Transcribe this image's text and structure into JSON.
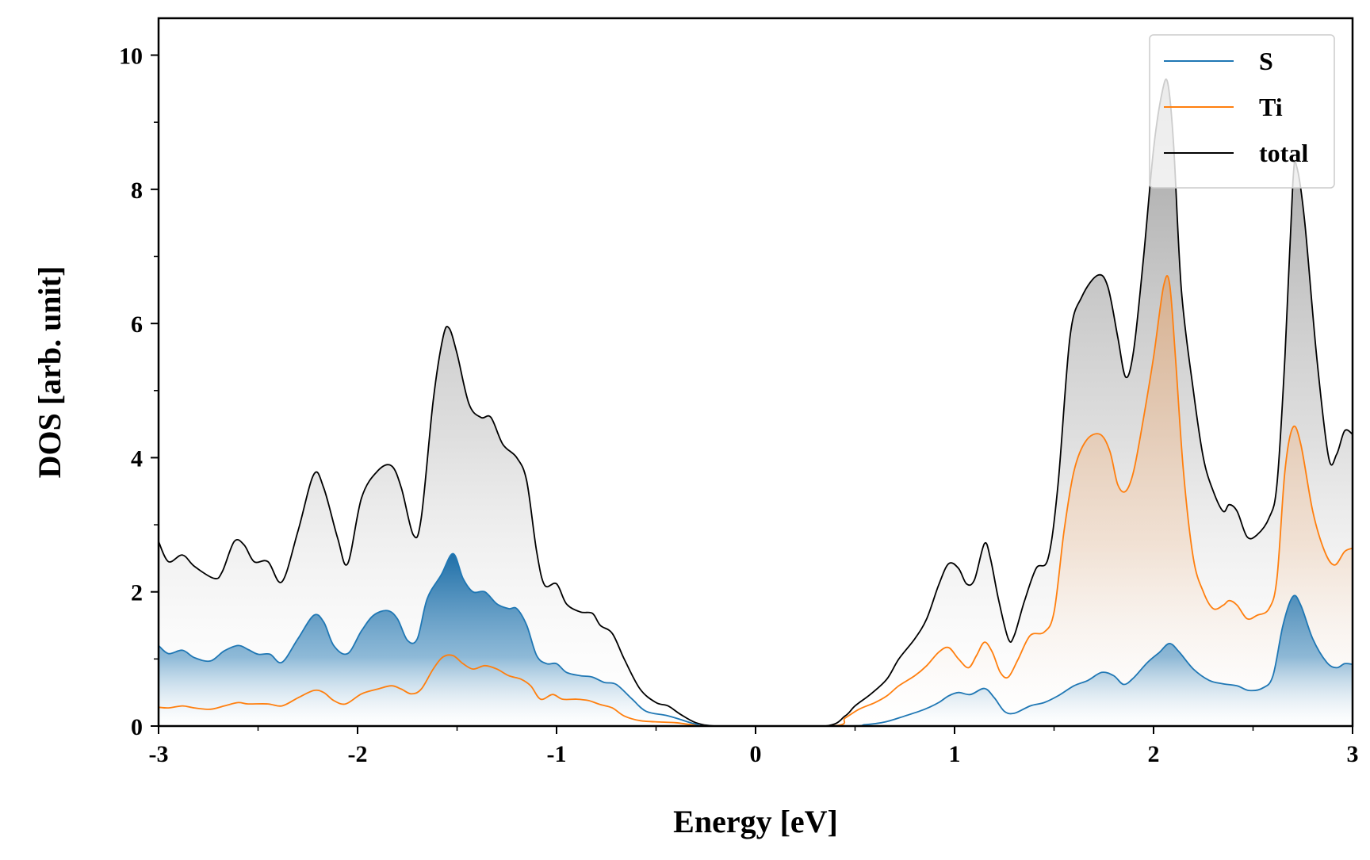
{
  "chart_data": {
    "type": "area",
    "title": "",
    "xlabel": "Energy [eV]",
    "ylabel": "DOS [arb. unit]",
    "xlim": [
      -3,
      3
    ],
    "ylim": [
      0,
      10.55
    ],
    "x_ticks": [
      {
        "v": -3,
        "label": "-3"
      },
      {
        "v": -2,
        "label": "-2"
      },
      {
        "v": -1,
        "label": "-1"
      },
      {
        "v": 0,
        "label": "0"
      },
      {
        "v": 1,
        "label": "1"
      },
      {
        "v": 2,
        "label": "2"
      },
      {
        "v": 3,
        "label": "3"
      }
    ],
    "x_minor_ticks": [
      -2.5,
      -1.5,
      -0.5,
      0.5,
      1.5,
      2.5
    ],
    "y_ticks": [
      {
        "v": 0,
        "label": "0"
      },
      {
        "v": 2,
        "label": "2"
      },
      {
        "v": 4,
        "label": "4"
      },
      {
        "v": 6,
        "label": "6"
      },
      {
        "v": 8,
        "label": "8"
      },
      {
        "v": 10,
        "label": "10"
      }
    ],
    "y_minor_ticks": [
      1,
      3,
      5,
      7,
      9
    ],
    "grid": false,
    "legend": {
      "position": "top-right",
      "entries": [
        "S",
        "Ti",
        "total"
      ]
    },
    "series": [
      {
        "name": "total",
        "color": "#000000",
        "fill": "gray",
        "points": [
          [
            -3.0,
            2.75
          ],
          [
            -2.95,
            2.45
          ],
          [
            -2.88,
            2.55
          ],
          [
            -2.82,
            2.38
          ],
          [
            -2.72,
            2.2
          ],
          [
            -2.68,
            2.3
          ],
          [
            -2.62,
            2.75
          ],
          [
            -2.57,
            2.7
          ],
          [
            -2.52,
            2.45
          ],
          [
            -2.45,
            2.45
          ],
          [
            -2.38,
            2.15
          ],
          [
            -2.3,
            2.9
          ],
          [
            -2.22,
            3.75
          ],
          [
            -2.17,
            3.55
          ],
          [
            -2.1,
            2.8
          ],
          [
            -2.05,
            2.42
          ],
          [
            -1.98,
            3.4
          ],
          [
            -1.9,
            3.8
          ],
          [
            -1.83,
            3.88
          ],
          [
            -1.78,
            3.55
          ],
          [
            -1.72,
            2.85
          ],
          [
            -1.68,
            3.1
          ],
          [
            -1.62,
            4.85
          ],
          [
            -1.57,
            5.8
          ],
          [
            -1.54,
            5.93
          ],
          [
            -1.5,
            5.55
          ],
          [
            -1.44,
            4.8
          ],
          [
            -1.38,
            4.6
          ],
          [
            -1.33,
            4.6
          ],
          [
            -1.27,
            4.2
          ],
          [
            -1.2,
            4.0
          ],
          [
            -1.15,
            3.65
          ],
          [
            -1.1,
            2.6
          ],
          [
            -1.06,
            2.1
          ],
          [
            -1.0,
            2.12
          ],
          [
            -0.95,
            1.82
          ],
          [
            -0.88,
            1.7
          ],
          [
            -0.82,
            1.68
          ],
          [
            -0.78,
            1.5
          ],
          [
            -0.72,
            1.38
          ],
          [
            -0.66,
            1.0
          ],
          [
            -0.58,
            0.55
          ],
          [
            -0.5,
            0.35
          ],
          [
            -0.44,
            0.3
          ],
          [
            -0.38,
            0.18
          ],
          [
            -0.3,
            0.05
          ],
          [
            -0.2,
            0.0
          ],
          [
            0.0,
            0.0
          ],
          [
            0.35,
            0.0
          ],
          [
            0.45,
            0.15
          ],
          [
            0.5,
            0.3
          ],
          [
            0.58,
            0.48
          ],
          [
            0.66,
            0.7
          ],
          [
            0.72,
            1.0
          ],
          [
            0.8,
            1.3
          ],
          [
            0.86,
            1.6
          ],
          [
            0.92,
            2.1
          ],
          [
            0.97,
            2.42
          ],
          [
            1.02,
            2.35
          ],
          [
            1.06,
            2.12
          ],
          [
            1.1,
            2.18
          ],
          [
            1.15,
            2.72
          ],
          [
            1.18,
            2.5
          ],
          [
            1.22,
            1.9
          ],
          [
            1.27,
            1.3
          ],
          [
            1.3,
            1.35
          ],
          [
            1.35,
            1.85
          ],
          [
            1.41,
            2.35
          ],
          [
            1.47,
            2.5
          ],
          [
            1.52,
            3.6
          ],
          [
            1.58,
            5.8
          ],
          [
            1.64,
            6.4
          ],
          [
            1.72,
            6.72
          ],
          [
            1.77,
            6.55
          ],
          [
            1.82,
            5.8
          ],
          [
            1.86,
            5.2
          ],
          [
            1.9,
            5.6
          ],
          [
            1.95,
            7.0
          ],
          [
            2.0,
            8.6
          ],
          [
            2.04,
            9.4
          ],
          [
            2.07,
            9.6
          ],
          [
            2.1,
            8.7
          ],
          [
            2.14,
            6.5
          ],
          [
            2.2,
            5.0
          ],
          [
            2.25,
            4.0
          ],
          [
            2.3,
            3.5
          ],
          [
            2.35,
            3.2
          ],
          [
            2.38,
            3.3
          ],
          [
            2.42,
            3.2
          ],
          [
            2.47,
            2.82
          ],
          [
            2.52,
            2.85
          ],
          [
            2.58,
            3.1
          ],
          [
            2.62,
            3.6
          ],
          [
            2.66,
            5.5
          ],
          [
            2.7,
            8.1
          ],
          [
            2.72,
            8.33
          ],
          [
            2.76,
            7.5
          ],
          [
            2.82,
            5.5
          ],
          [
            2.88,
            4.0
          ],
          [
            2.92,
            4.05
          ],
          [
            2.96,
            4.4
          ],
          [
            3.0,
            4.35
          ]
        ]
      },
      {
        "name": "S",
        "color": "#1f77b4",
        "fill": "blue",
        "points": [
          [
            -3.0,
            1.2
          ],
          [
            -2.95,
            1.08
          ],
          [
            -2.88,
            1.13
          ],
          [
            -2.82,
            1.02
          ],
          [
            -2.74,
            0.97
          ],
          [
            -2.67,
            1.12
          ],
          [
            -2.6,
            1.2
          ],
          [
            -2.55,
            1.14
          ],
          [
            -2.5,
            1.07
          ],
          [
            -2.44,
            1.07
          ],
          [
            -2.38,
            0.95
          ],
          [
            -2.3,
            1.3
          ],
          [
            -2.22,
            1.65
          ],
          [
            -2.17,
            1.55
          ],
          [
            -2.12,
            1.2
          ],
          [
            -2.05,
            1.08
          ],
          [
            -1.98,
            1.42
          ],
          [
            -1.92,
            1.65
          ],
          [
            -1.85,
            1.72
          ],
          [
            -1.8,
            1.6
          ],
          [
            -1.75,
            1.28
          ],
          [
            -1.7,
            1.3
          ],
          [
            -1.65,
            1.9
          ],
          [
            -1.58,
            2.25
          ],
          [
            -1.52,
            2.57
          ],
          [
            -1.47,
            2.2
          ],
          [
            -1.42,
            2.0
          ],
          [
            -1.36,
            2.0
          ],
          [
            -1.3,
            1.82
          ],
          [
            -1.24,
            1.75
          ],
          [
            -1.2,
            1.75
          ],
          [
            -1.15,
            1.5
          ],
          [
            -1.1,
            1.05
          ],
          [
            -1.05,
            0.93
          ],
          [
            -1.0,
            0.93
          ],
          [
            -0.95,
            0.8
          ],
          [
            -0.88,
            0.75
          ],
          [
            -0.82,
            0.73
          ],
          [
            -0.76,
            0.65
          ],
          [
            -0.7,
            0.62
          ],
          [
            -0.62,
            0.4
          ],
          [
            -0.55,
            0.22
          ],
          [
            -0.45,
            0.16
          ],
          [
            -0.38,
            0.1
          ],
          [
            -0.3,
            0.03
          ],
          [
            -0.2,
            0.0
          ],
          [
            0.45,
            0.0
          ],
          [
            0.55,
            0.02
          ],
          [
            0.65,
            0.06
          ],
          [
            0.75,
            0.15
          ],
          [
            0.85,
            0.25
          ],
          [
            0.92,
            0.35
          ],
          [
            0.97,
            0.45
          ],
          [
            1.02,
            0.5
          ],
          [
            1.08,
            0.47
          ],
          [
            1.15,
            0.56
          ],
          [
            1.2,
            0.42
          ],
          [
            1.25,
            0.22
          ],
          [
            1.3,
            0.19
          ],
          [
            1.38,
            0.3
          ],
          [
            1.45,
            0.35
          ],
          [
            1.52,
            0.45
          ],
          [
            1.6,
            0.6
          ],
          [
            1.67,
            0.68
          ],
          [
            1.74,
            0.8
          ],
          [
            1.8,
            0.75
          ],
          [
            1.85,
            0.62
          ],
          [
            1.9,
            0.72
          ],
          [
            1.97,
            0.95
          ],
          [
            2.03,
            1.1
          ],
          [
            2.08,
            1.23
          ],
          [
            2.13,
            1.1
          ],
          [
            2.2,
            0.85
          ],
          [
            2.28,
            0.68
          ],
          [
            2.35,
            0.63
          ],
          [
            2.42,
            0.6
          ],
          [
            2.48,
            0.53
          ],
          [
            2.55,
            0.57
          ],
          [
            2.6,
            0.75
          ],
          [
            2.65,
            1.5
          ],
          [
            2.7,
            1.93
          ],
          [
            2.74,
            1.8
          ],
          [
            2.8,
            1.3
          ],
          [
            2.87,
            0.95
          ],
          [
            2.92,
            0.87
          ],
          [
            2.96,
            0.93
          ],
          [
            3.0,
            0.92
          ]
        ]
      },
      {
        "name": "Ti",
        "color": "#ff7f0e",
        "fill": "orange",
        "points": [
          [
            -3.0,
            0.28
          ],
          [
            -2.95,
            0.27
          ],
          [
            -2.88,
            0.3
          ],
          [
            -2.82,
            0.27
          ],
          [
            -2.74,
            0.25
          ],
          [
            -2.67,
            0.3
          ],
          [
            -2.6,
            0.35
          ],
          [
            -2.55,
            0.33
          ],
          [
            -2.45,
            0.33
          ],
          [
            -2.38,
            0.3
          ],
          [
            -2.3,
            0.42
          ],
          [
            -2.22,
            0.53
          ],
          [
            -2.17,
            0.5
          ],
          [
            -2.12,
            0.38
          ],
          [
            -2.06,
            0.33
          ],
          [
            -1.98,
            0.48
          ],
          [
            -1.9,
            0.55
          ],
          [
            -1.83,
            0.6
          ],
          [
            -1.78,
            0.55
          ],
          [
            -1.73,
            0.48
          ],
          [
            -1.68,
            0.55
          ],
          [
            -1.62,
            0.85
          ],
          [
            -1.57,
            1.03
          ],
          [
            -1.52,
            1.05
          ],
          [
            -1.47,
            0.93
          ],
          [
            -1.42,
            0.85
          ],
          [
            -1.36,
            0.9
          ],
          [
            -1.3,
            0.85
          ],
          [
            -1.24,
            0.75
          ],
          [
            -1.18,
            0.7
          ],
          [
            -1.13,
            0.6
          ],
          [
            -1.08,
            0.4
          ],
          [
            -1.02,
            0.47
          ],
          [
            -0.97,
            0.4
          ],
          [
            -0.9,
            0.4
          ],
          [
            -0.84,
            0.38
          ],
          [
            -0.78,
            0.32
          ],
          [
            -0.72,
            0.27
          ],
          [
            -0.66,
            0.15
          ],
          [
            -0.58,
            0.08
          ],
          [
            -0.48,
            0.06
          ],
          [
            -0.4,
            0.05
          ],
          [
            -0.32,
            0.02
          ],
          [
            -0.2,
            0.0
          ],
          [
            0.38,
            0.0
          ],
          [
            0.45,
            0.12
          ],
          [
            0.52,
            0.25
          ],
          [
            0.6,
            0.35
          ],
          [
            0.66,
            0.45
          ],
          [
            0.72,
            0.6
          ],
          [
            0.8,
            0.75
          ],
          [
            0.86,
            0.9
          ],
          [
            0.92,
            1.1
          ],
          [
            0.97,
            1.17
          ],
          [
            1.02,
            1.0
          ],
          [
            1.07,
            0.87
          ],
          [
            1.11,
            1.05
          ],
          [
            1.15,
            1.25
          ],
          [
            1.19,
            1.1
          ],
          [
            1.23,
            0.8
          ],
          [
            1.27,
            0.73
          ],
          [
            1.32,
            1.0
          ],
          [
            1.38,
            1.35
          ],
          [
            1.45,
            1.4
          ],
          [
            1.5,
            1.7
          ],
          [
            1.55,
            2.9
          ],
          [
            1.6,
            3.8
          ],
          [
            1.66,
            4.25
          ],
          [
            1.73,
            4.35
          ],
          [
            1.78,
            4.1
          ],
          [
            1.82,
            3.6
          ],
          [
            1.86,
            3.5
          ],
          [
            1.9,
            3.8
          ],
          [
            1.95,
            4.6
          ],
          [
            2.0,
            5.5
          ],
          [
            2.05,
            6.55
          ],
          [
            2.08,
            6.6
          ],
          [
            2.11,
            5.5
          ],
          [
            2.15,
            3.8
          ],
          [
            2.2,
            2.5
          ],
          [
            2.25,
            2.0
          ],
          [
            2.3,
            1.75
          ],
          [
            2.35,
            1.8
          ],
          [
            2.38,
            1.87
          ],
          [
            2.42,
            1.8
          ],
          [
            2.47,
            1.6
          ],
          [
            2.52,
            1.65
          ],
          [
            2.58,
            1.75
          ],
          [
            2.62,
            2.2
          ],
          [
            2.66,
            3.8
          ],
          [
            2.7,
            4.45
          ],
          [
            2.74,
            4.2
          ],
          [
            2.8,
            3.2
          ],
          [
            2.86,
            2.6
          ],
          [
            2.91,
            2.4
          ],
          [
            2.96,
            2.6
          ],
          [
            3.0,
            2.65
          ]
        ]
      }
    ]
  }
}
